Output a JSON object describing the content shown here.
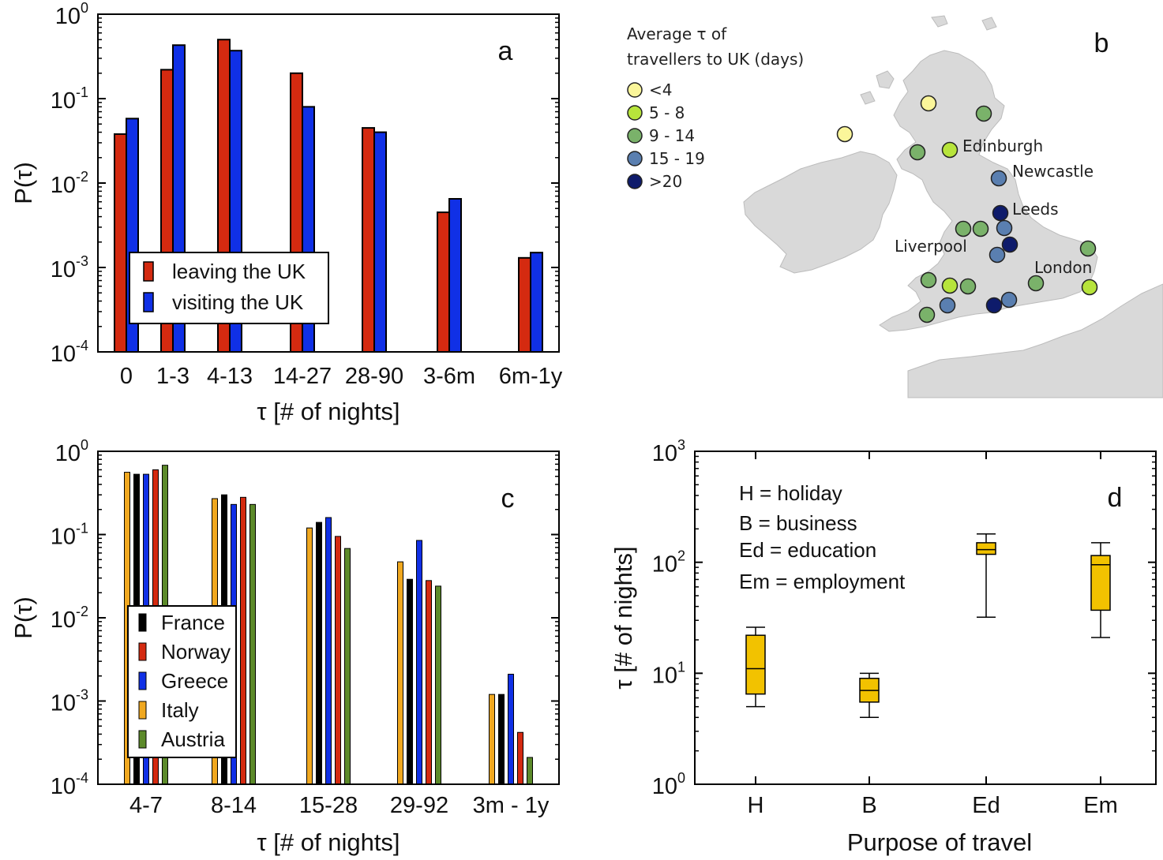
{
  "colors": {
    "red": "#d42a10",
    "blue": "#1030e6",
    "black": "#000000",
    "orange": "#f0a820",
    "green": "#5c8a2a",
    "box_fill": "#f2c200",
    "land": "#d9d9d9",
    "circle_lt4": "#fbf69a",
    "circle_5_8": "#b7e43b",
    "circle_9_14": "#7ab26a",
    "circle_15_19": "#5a7fb0",
    "circle_gt20": "#0e1b6b"
  },
  "chart_data": [
    {
      "panel": "a",
      "type": "bar",
      "scale": "log",
      "ylim": [
        0.0001,
        1
      ],
      "ylabel": "P(τ)",
      "xlabel": "τ [# of nights]",
      "categories": [
        "0",
        "1-3",
        "4-13",
        "14-27",
        "28-90",
        "3-6m",
        "6m-1y"
      ],
      "series": [
        {
          "name": "leaving the UK",
          "color": "red",
          "values": [
            0.038,
            0.22,
            0.5,
            0.2,
            0.045,
            0.0045,
            0.0013
          ]
        },
        {
          "name": "visiting the UK",
          "color": "blue",
          "values": [
            0.058,
            0.43,
            0.37,
            0.08,
            0.04,
            0.0065,
            0.0015
          ]
        }
      ],
      "legend": "bottom-left"
    },
    {
      "panel": "c",
      "type": "bar",
      "scale": "log",
      "ylim": [
        0.0001,
        1
      ],
      "ylabel": "P(τ)",
      "xlabel": "τ [# of nights]",
      "categories": [
        "4-7",
        "8-14",
        "15-28",
        "29-92",
        "3m - 1y"
      ],
      "series": [
        {
          "name": "Italy",
          "color": "orange",
          "values": [
            0.56,
            0.27,
            0.12,
            0.047,
            0.0012
          ]
        },
        {
          "name": "France",
          "color": "black",
          "values": [
            0.53,
            0.3,
            0.14,
            0.029,
            0.0012
          ]
        },
        {
          "name": "Greece",
          "color": "blue",
          "values": [
            0.53,
            0.23,
            0.16,
            0.085,
            0.0021
          ]
        },
        {
          "name": "Norway",
          "color": "red",
          "values": [
            0.6,
            0.28,
            0.095,
            0.028,
            0.00042
          ]
        },
        {
          "name": "Austria",
          "color": "green",
          "values": [
            0.68,
            0.23,
            0.068,
            0.024,
            0.00021
          ]
        }
      ],
      "legend_order": [
        "France",
        "Norway",
        "Greece",
        "Italy",
        "Austria"
      ],
      "legend": "bottom-left"
    },
    {
      "panel": "d",
      "type": "box",
      "scale": "log",
      "ylim": [
        1,
        1000
      ],
      "ylabel": "τ [# of nights]",
      "xlabel": "Purpose of travel",
      "categories": [
        "H",
        "B",
        "Ed",
        "Em"
      ],
      "boxes": [
        {
          "whisker_low": 5,
          "q1": 6.5,
          "median": 11,
          "q3": 22,
          "whisker_high": 26
        },
        {
          "whisker_low": 4,
          "q1": 5.5,
          "median": 7,
          "q3": 9,
          "whisker_high": 10
        },
        {
          "whisker_low": 32,
          "q1": 118,
          "median": 130,
          "q3": 150,
          "whisker_high": 180
        },
        {
          "whisker_low": 21,
          "q1": 37,
          "median": 95,
          "q3": 115,
          "whisker_high": 150
        }
      ],
      "annotations": [
        "H = holiday",
        "B = business",
        "Ed = education",
        "Em = employment"
      ]
    }
  ],
  "ticks": {
    "a": [
      "10",
      "0",
      "10",
      "-1",
      "10",
      "-2",
      "10",
      "-3",
      "10",
      "-4"
    ],
    "d": [
      "10",
      "3",
      "10",
      "2",
      "10",
      "1",
      "10",
      "0"
    ]
  },
  "panel_letters": {
    "a": "a",
    "b": "b",
    "c": "c",
    "d": "d"
  },
  "map": {
    "legend_title_line1": "Average τ of",
    "legend_title_line2": "travellers to UK (days)",
    "legend_items": [
      {
        "label": "<4",
        "color": "circle_lt4"
      },
      {
        "label": "5 - 8",
        "color": "circle_5_8"
      },
      {
        "label": "9 - 14",
        "color": "circle_9_14"
      },
      {
        "label": "15 - 19",
        "color": "circle_15_19"
      },
      {
        "label": ">20",
        "color": "circle_gt20"
      }
    ],
    "city_labels": [
      "Edinburgh",
      "Newcastle",
      "Leeds",
      "Liverpool",
      "London"
    ]
  }
}
